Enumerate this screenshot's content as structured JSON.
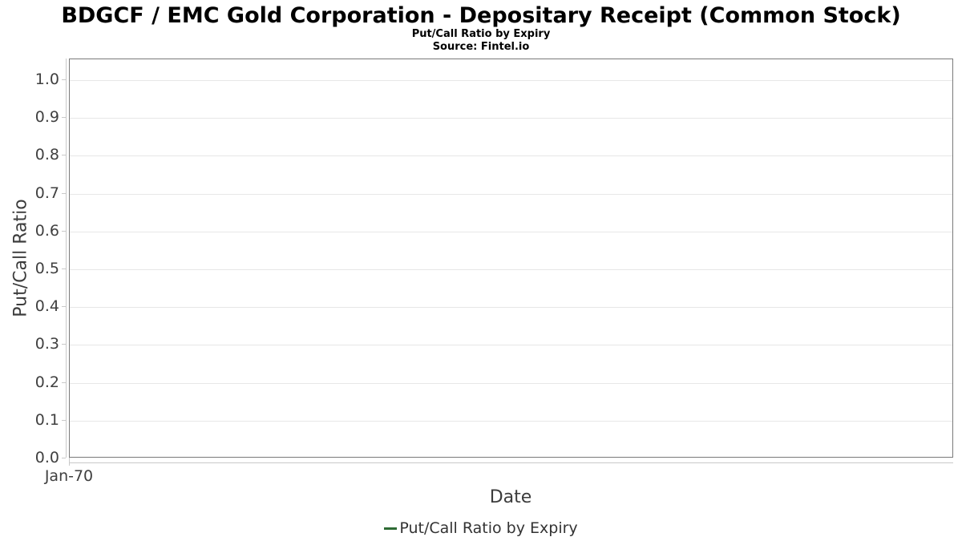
{
  "chart_data": {
    "type": "line",
    "title": "BDGCF / EMC Gold Corporation - Depositary Receipt (Common Stock)",
    "subtitle": "Put/Call Ratio by Expiry",
    "source": "Source: Fintel.io",
    "xlabel": "Date",
    "ylabel": "Put/Call Ratio",
    "ylim": [
      0,
      1.055
    ],
    "yticks": [
      0.0,
      0.1,
      0.2,
      0.3,
      0.4,
      0.5,
      0.6,
      0.7,
      0.8,
      0.9,
      1.0
    ],
    "xticks": [
      {
        "label": "Jan-70",
        "frac": 0
      }
    ],
    "grid": true,
    "legend_position": "bottom",
    "series": [
      {
        "name": "Put/Call Ratio by Expiry",
        "color": "#2E6B34",
        "x": [],
        "values": []
      }
    ],
    "colors": {
      "grid": "#e7e7e7",
      "axis_line": "#c9c9c9",
      "plot_border": "#7a7a7a",
      "tick_label": "#404040",
      "axis_title": "#3c3c3c",
      "legend_text": "#333333",
      "title_text": "#000000"
    }
  }
}
